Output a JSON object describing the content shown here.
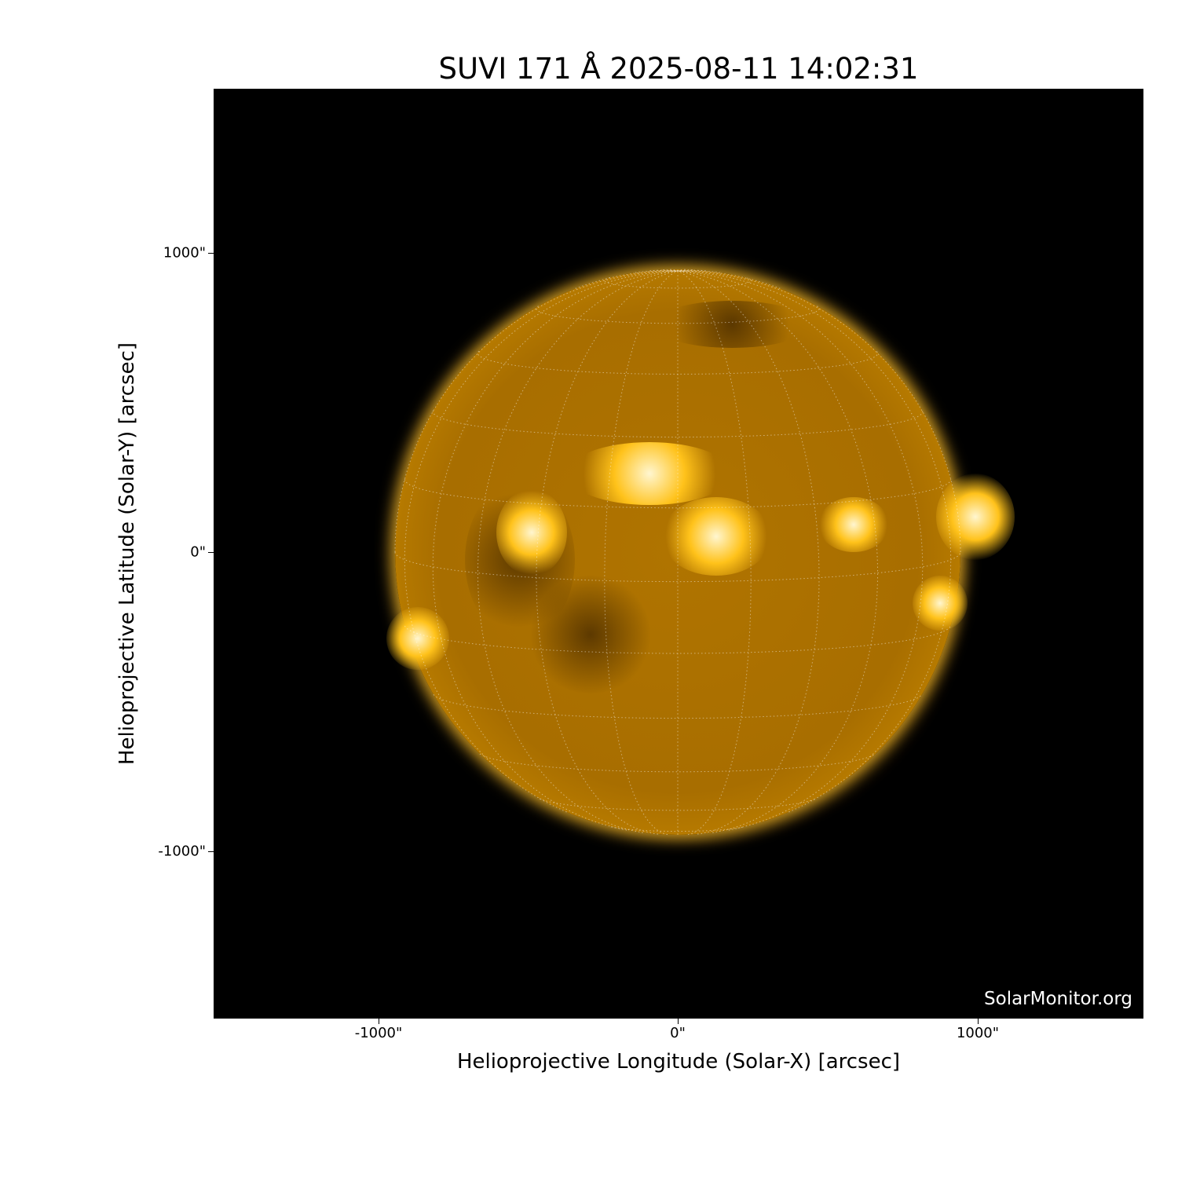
{
  "title": "SUVI 171 Å 2025-08-11 14:02:31",
  "watermark": "SolarMonitor.org",
  "x_axis": {
    "label": "Helioprojective Longitude (Solar-X) [arcsec]",
    "ticks": [
      "-1000\"",
      "0\"",
      "1000\""
    ],
    "tick_values": [
      -1000,
      0,
      1000
    ]
  },
  "y_axis": {
    "label": "Helioprojective Latitude (Solar-Y) [arcsec]",
    "ticks": [
      "1000\"",
      "0\"",
      "-1000\""
    ],
    "tick_values": [
      1000,
      0,
      -1000
    ]
  },
  "colormap": {
    "background": "#000000",
    "disk": "#a86e00",
    "limb": "#ffb400",
    "highlight": "#fff6d0"
  },
  "grid": {
    "graticule_spacing_deg": 15,
    "style": "dotted"
  }
}
